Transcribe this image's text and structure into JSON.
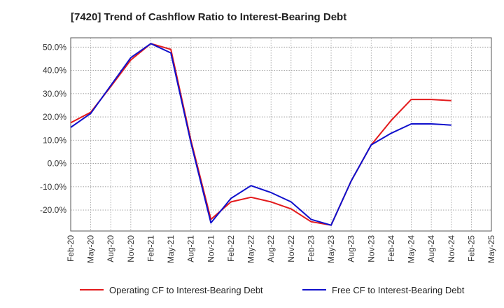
{
  "chart_data": {
    "type": "line",
    "title": "[7420]  Trend of Cashflow Ratio to Interest-Bearing Debt",
    "xlabel": "",
    "ylabel": "",
    "x": [
      "Feb-20",
      "May-20",
      "Aug-20",
      "Nov-20",
      "Feb-21",
      "May-21",
      "Aug-21",
      "Nov-21",
      "Feb-22",
      "May-22",
      "Aug-22",
      "Nov-22",
      "Feb-23",
      "May-23",
      "Aug-23",
      "Nov-23",
      "Feb-24",
      "May-24",
      "Aug-24",
      "Nov-24",
      "Feb-25",
      "May-25"
    ],
    "ylim": [
      -29,
      54
    ],
    "yticks": [
      -20,
      -10,
      0,
      10,
      20,
      30,
      40,
      50
    ],
    "ytick_labels": [
      "-20.0%",
      "-10.0%",
      "0.0%",
      "10.0%",
      "20.0%",
      "30.0%",
      "40.0%",
      "50.0%"
    ],
    "grid": true,
    "legend_position": "bottom",
    "series": [
      {
        "name": "Operating CF to Interest-Bearing Debt",
        "color": "#e31a1c",
        "values": [
          17.5,
          22.0,
          33.0,
          44.5,
          51.5,
          49.0,
          10.0,
          -24.0,
          -16.5,
          -14.5,
          -16.5,
          -19.5,
          -25.0,
          -26.5,
          -7.5,
          8.0,
          18.5,
          27.5,
          27.5,
          27.0,
          null,
          null
        ]
      },
      {
        "name": "Free CF to Interest-Bearing Debt",
        "color": "#1010cc",
        "values": [
          15.5,
          21.5,
          33.5,
          45.5,
          51.5,
          47.5,
          9.0,
          -25.5,
          -15.0,
          -9.5,
          -12.5,
          -16.5,
          -24.0,
          -26.5,
          -7.5,
          8.0,
          13.0,
          17.0,
          17.0,
          16.5,
          null,
          null
        ]
      }
    ]
  }
}
